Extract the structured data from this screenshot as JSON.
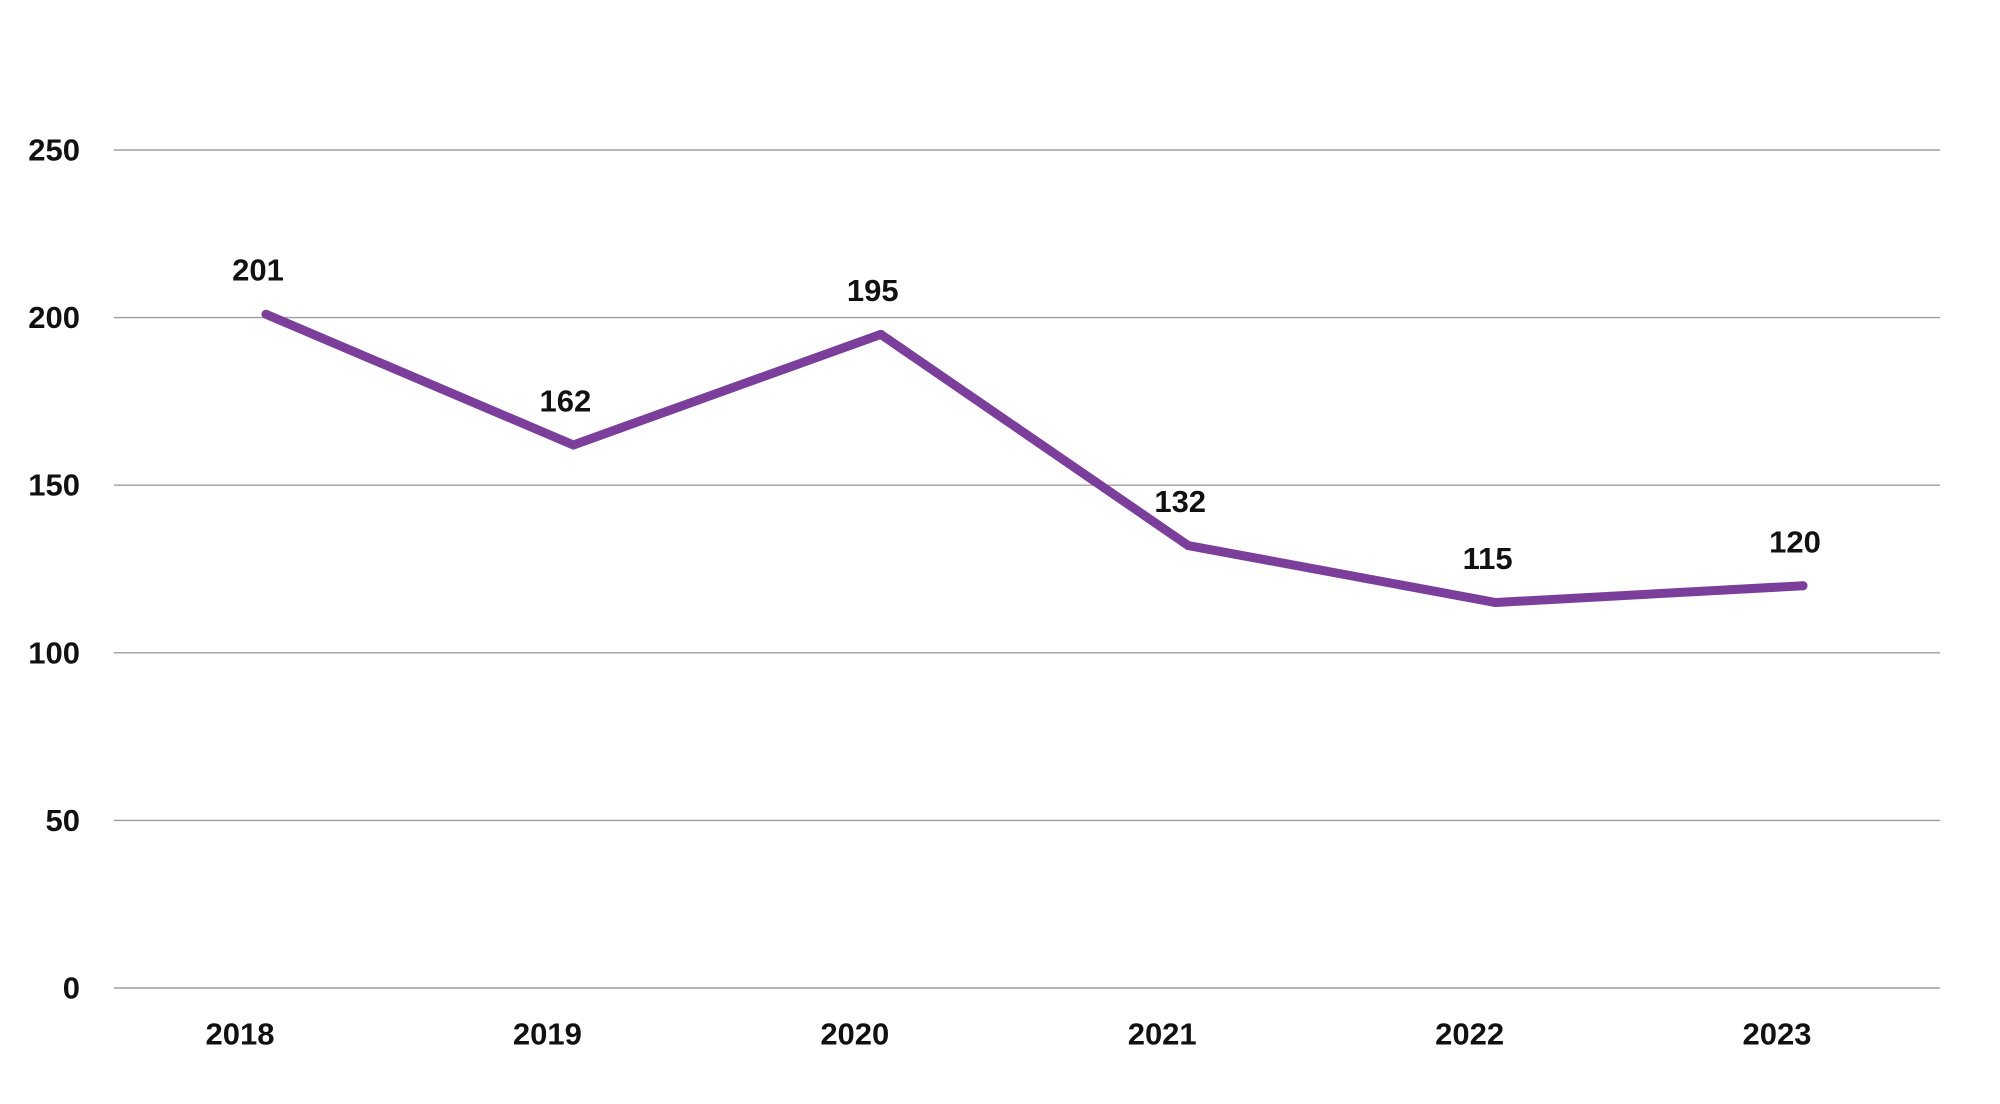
{
  "chart_data": {
    "type": "line",
    "title": "",
    "xlabel": "",
    "ylabel": "",
    "categories": [
      "2018",
      "2019",
      "2020",
      "2021",
      "2022",
      "2023"
    ],
    "series": [
      {
        "values": [
          201,
          162,
          195,
          132,
          115,
          120
        ],
        "color": "#7b3f9b"
      }
    ],
    "ylim": [
      0,
      250
    ],
    "y_ticks": [
      0,
      50,
      100,
      150,
      200,
      250
    ],
    "y_tick_labels": [
      "0",
      "50",
      "100",
      "150",
      "200",
      "250"
    ],
    "data_labels": [
      "201",
      "162",
      "195",
      "132",
      "115",
      "120"
    ],
    "grid": true,
    "legend": "none"
  }
}
